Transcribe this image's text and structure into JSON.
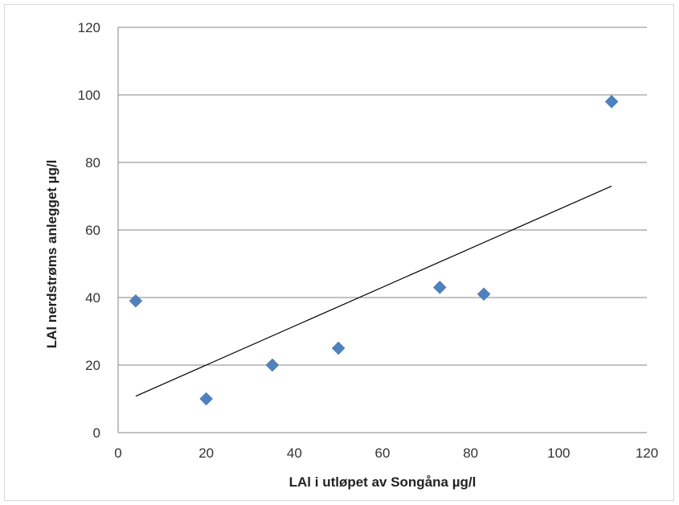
{
  "chart_data": {
    "type": "scatter",
    "title": "",
    "xlabel": "LAl i utløpet av Songåna µg/l",
    "ylabel": "LAl nerdstrøms anlegget µg/l",
    "xlim": [
      0,
      120
    ],
    "ylim": [
      0,
      120
    ],
    "x_ticks": [
      0,
      20,
      40,
      60,
      80,
      100,
      120
    ],
    "y_ticks": [
      0,
      20,
      40,
      60,
      80,
      100,
      120
    ],
    "grid": "horizontal",
    "legend": "none",
    "series": [
      {
        "marker": "diamond",
        "color": "#4f81bd",
        "points": [
          {
            "x": 4,
            "y": 39
          },
          {
            "x": 20,
            "y": 10
          },
          {
            "x": 35,
            "y": 20
          },
          {
            "x": 50,
            "y": 25
          },
          {
            "x": 73,
            "y": 43
          },
          {
            "x": 83,
            "y": 41
          },
          {
            "x": 112,
            "y": 98
          }
        ]
      }
    ],
    "trendline": {
      "type": "linear",
      "color": "#000000",
      "points": [
        {
          "x": 4,
          "y": 10.8
        },
        {
          "x": 112,
          "y": 73
        }
      ]
    }
  }
}
